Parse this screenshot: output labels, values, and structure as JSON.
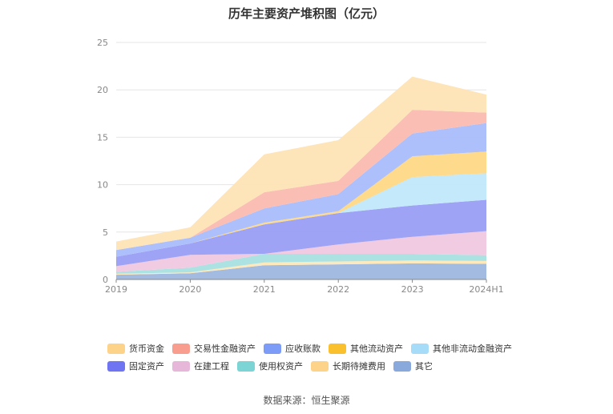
{
  "chart_data": {
    "type": "area",
    "stacked": true,
    "title": "历年主要资产堆积图（亿元）",
    "x": [
      "2019",
      "2020",
      "2021",
      "2022",
      "2023",
      "2024H1"
    ],
    "ylim": [
      0,
      25
    ],
    "yticks": [
      0,
      5,
      10,
      15,
      20,
      25
    ],
    "grid": true,
    "legend_position": "bottom",
    "series": [
      {
        "name": "其它",
        "color": "#9eb6df",
        "values": [
          0.5,
          0.65,
          1.5,
          1.6,
          1.7,
          1.65
        ]
      },
      {
        "name": "长期待摊费用",
        "color": "#fde8b8",
        "values": [
          0.1,
          0.1,
          0.3,
          0.3,
          0.3,
          0.3
        ]
      },
      {
        "name": "使用权资产",
        "color": "#a8e0e0",
        "values": [
          0.2,
          0.5,
          0.9,
          0.8,
          0.7,
          0.6
        ]
      },
      {
        "name": "在建工程",
        "color": "#f0c8e0",
        "values": [
          0.6,
          1.35,
          0.0,
          1.0,
          1.8,
          2.55
        ]
      },
      {
        "name": "固定资产",
        "color": "#9a9ef5",
        "values": [
          1.0,
          1.2,
          3.1,
          3.3,
          3.3,
          3.3
        ]
      },
      {
        "name": "其他非流动金融资产",
        "color": "#c0e8fb",
        "values": [
          0.0,
          0.0,
          0.0,
          0.0,
          3.0,
          2.8
        ]
      },
      {
        "name": "其他流动资产",
        "color": "#fdd886",
        "values": [
          0.0,
          0.0,
          0.2,
          0.2,
          2.2,
          2.3
        ]
      },
      {
        "name": "应收账款",
        "color": "#a9bdfb",
        "values": [
          0.7,
          0.6,
          1.5,
          1.8,
          2.4,
          3.0
        ]
      },
      {
        "name": "交易性金融资产",
        "color": "#fbbbb0",
        "values": [
          0.0,
          0.0,
          1.7,
          1.4,
          2.5,
          1.1
        ]
      },
      {
        "name": "货币资金",
        "color": "#fee3b5",
        "values": [
          0.9,
          1.1,
          4.0,
          4.3,
          3.5,
          1.9
        ]
      }
    ]
  },
  "legend": {
    "rows": [
      [
        {
          "name": "货币资金",
          "color": "#fdd38a"
        },
        {
          "name": "交易性金融资产",
          "color": "#f99e8e"
        },
        {
          "name": "应收账款",
          "color": "#7c9cf8"
        },
        {
          "name": "其他流动资产",
          "color": "#fbc02d"
        },
        {
          "name": "其他非流动金融资产",
          "color": "#a7dcf8"
        }
      ],
      [
        {
          "name": "固定资产",
          "color": "#6f74f2"
        },
        {
          "name": "在建工程",
          "color": "#e6b7d8"
        },
        {
          "name": "使用权资产",
          "color": "#7cd4d4"
        },
        {
          "name": "长期待摊费用",
          "color": "#fdd38a"
        },
        {
          "name": "其它",
          "color": "#89a8dc"
        }
      ]
    ]
  },
  "source": "数据来源：恒生聚源"
}
